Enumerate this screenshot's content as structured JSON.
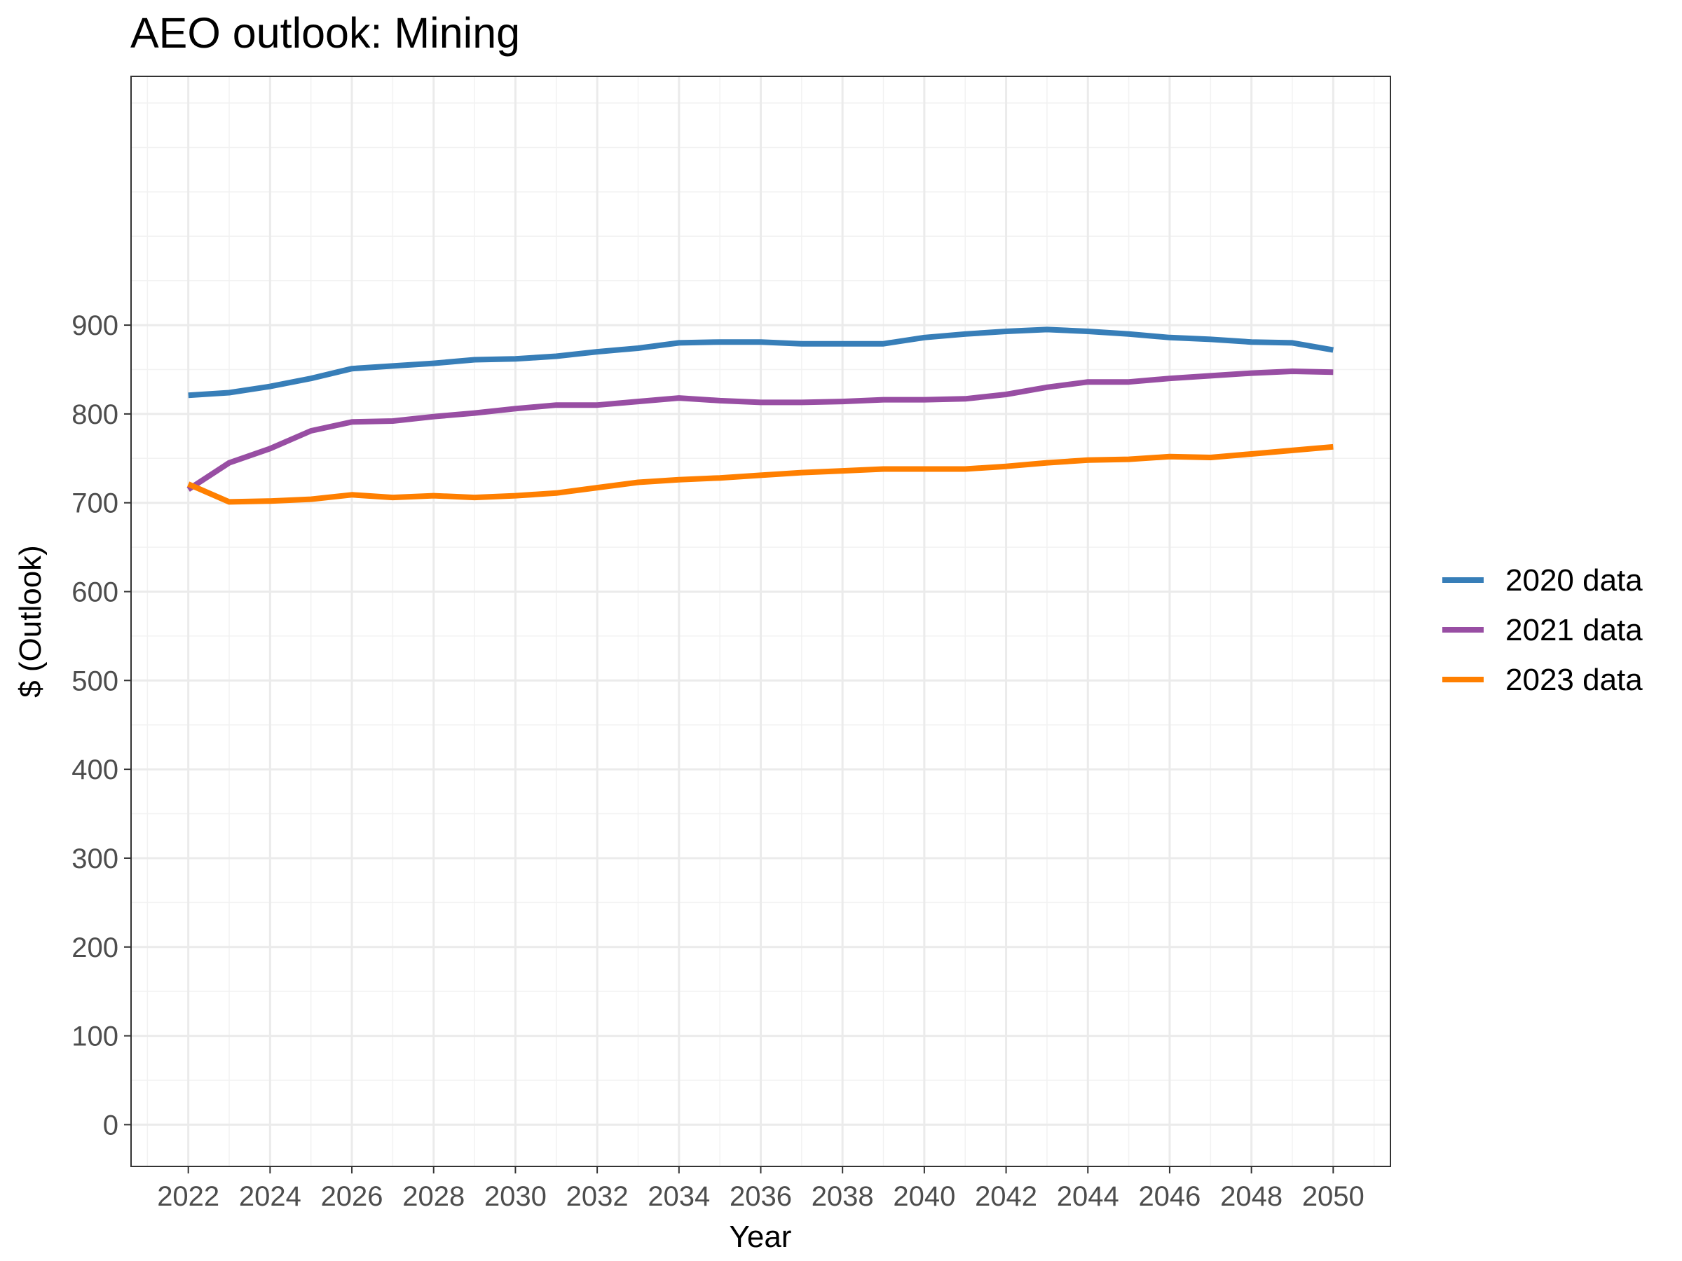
{
  "chart_data": {
    "type": "line",
    "title": "AEO outlook: Mining",
    "xlabel": "Year",
    "ylabel": "$ (Outlook)",
    "xlim": [
      2020.6,
      2051.4
    ],
    "ylim": [
      -47,
      1180
    ],
    "x_ticks": [
      2022,
      2024,
      2026,
      2028,
      2030,
      2032,
      2034,
      2036,
      2038,
      2040,
      2042,
      2044,
      2046,
      2048,
      2050
    ],
    "x_tick_labels": [
      "2022",
      "2024",
      "2026",
      "2028",
      "2030",
      "2032",
      "2034",
      "2036",
      "2038",
      "2040",
      "2042",
      "2044",
      "2046",
      "2048",
      "2050"
    ],
    "y_ticks": [
      0,
      100,
      200,
      300,
      400,
      500,
      600,
      700,
      800,
      900
    ],
    "y_tick_labels": [
      "0",
      "100",
      "200",
      "300",
      "400",
      "500",
      "600",
      "700",
      "800",
      "900"
    ],
    "grid": true,
    "legend_position": "right",
    "x": [
      2022,
      2023,
      2024,
      2025,
      2026,
      2027,
      2028,
      2029,
      2030,
      2031,
      2032,
      2033,
      2034,
      2035,
      2036,
      2037,
      2038,
      2039,
      2040,
      2041,
      2042,
      2043,
      2044,
      2045,
      2046,
      2047,
      2048,
      2049,
      2050
    ],
    "series": [
      {
        "name": "2020 data",
        "color": "#377eb8",
        "values": [
          821,
          824,
          831,
          840,
          851,
          854,
          857,
          861,
          862,
          865,
          870,
          874,
          880,
          881,
          881,
          879,
          879,
          879,
          886,
          890,
          893,
          895,
          893,
          890,
          886,
          884,
          881,
          880,
          872
        ]
      },
      {
        "name": "2021 data",
        "color": "#984ea3",
        "values": [
          715,
          745,
          761,
          781,
          791,
          792,
          797,
          801,
          806,
          810,
          810,
          814,
          818,
          815,
          813,
          813,
          814,
          816,
          816,
          817,
          822,
          830,
          836,
          836,
          840,
          843,
          846,
          848,
          847
        ]
      },
      {
        "name": "2023 data",
        "color": "#ff7f00",
        "values": [
          721,
          701,
          702,
          704,
          709,
          706,
          708,
          706,
          708,
          711,
          717,
          723,
          726,
          728,
          731,
          734,
          736,
          738,
          738,
          738,
          741,
          745,
          748,
          749,
          752,
          751,
          755,
          759,
          763
        ]
      }
    ]
  }
}
